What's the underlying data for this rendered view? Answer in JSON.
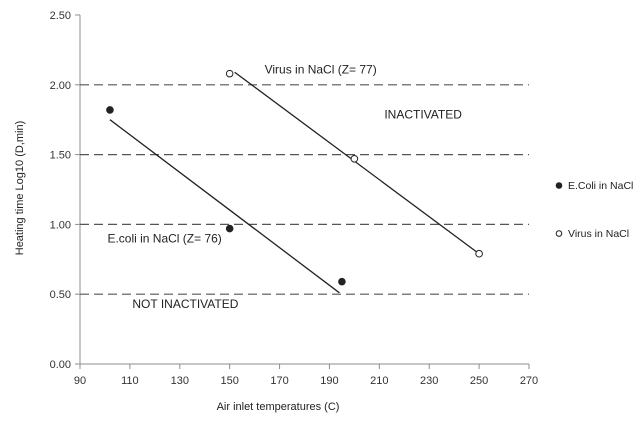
{
  "chart_data": {
    "type": "scatter",
    "title": "",
    "xlabel": "Air inlet temperatures (C)",
    "ylabel": "Heating time Log10 (D,min)",
    "xlim": [
      90,
      270
    ],
    "ylim": [
      0,
      2.5
    ],
    "x_ticks": [
      "90",
      "110",
      "130",
      "150",
      "170",
      "190",
      "210",
      "230",
      "250",
      "270"
    ],
    "y_ticks": [
      "0.00",
      "0.50",
      "1.00",
      "1.50",
      "2.00",
      "2.50"
    ],
    "threshold_lines": [
      0.5,
      1.0,
      1.5,
      2.0
    ],
    "grid": false,
    "legend_position": "right",
    "series": [
      {
        "name": "E.Coli in NaCl",
        "marker": "filled-circle",
        "color": "#222222",
        "points": [
          [
            102,
            1.82
          ],
          [
            150,
            0.97
          ],
          [
            195,
            0.59
          ]
        ],
        "trendline": [
          [
            102,
            1.75
          ],
          [
            194,
            0.51
          ]
        ]
      },
      {
        "name": "Virus in NaCl",
        "marker": "open-circle",
        "color": "#222222",
        "points": [
          [
            150,
            2.08
          ],
          [
            200,
            1.47
          ],
          [
            250,
            0.79
          ]
        ],
        "trendline": [
          [
            152,
            2.09
          ],
          [
            250,
            0.79
          ]
        ]
      }
    ],
    "annotations": [
      {
        "text": "Virus in NaCl (Z= 77)",
        "x": 164,
        "y": 2.08
      },
      {
        "text": "INACTIVATED",
        "x": 212,
        "y": 1.76
      },
      {
        "text": "E.coli in NaCl (Z= 76)",
        "x": 101,
        "y": 0.87
      },
      {
        "text": "NOT INACTIVATED",
        "x": 111,
        "y": 0.4
      }
    ]
  }
}
